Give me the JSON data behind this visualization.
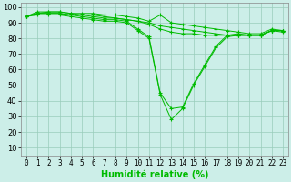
{
  "xlabel": "Humidité relative (%)",
  "ylabel_ticks": [
    10,
    20,
    30,
    40,
    50,
    60,
    70,
    80,
    90,
    100
  ],
  "xlim": [
    -0.5,
    23.5
  ],
  "ylim": [
    5,
    103
  ],
  "bg_color": "#cceee8",
  "grid_color": "#99ccbb",
  "line_color": "#00bb00",
  "marker": "+",
  "figsize": [
    3.2,
    2.0
  ],
  "dpi": 100,
  "series": [
    [
      94,
      97,
      97,
      97,
      96,
      96,
      96,
      95,
      95,
      94,
      93,
      91,
      95,
      90,
      89,
      88,
      87,
      86,
      85,
      84,
      83,
      83,
      86,
      85
    ],
    [
      94,
      96,
      97,
      97,
      96,
      95,
      95,
      94,
      93,
      92,
      91,
      90,
      88,
      87,
      86,
      85,
      84,
      83,
      82,
      82,
      82,
      82,
      85,
      85
    ],
    [
      94,
      96,
      96,
      96,
      95,
      95,
      94,
      93,
      93,
      92,
      91,
      89,
      86,
      84,
      83,
      83,
      82,
      82,
      82,
      82,
      82,
      82,
      85,
      85
    ],
    [
      94,
      96,
      96,
      96,
      95,
      94,
      93,
      92,
      92,
      91,
      86,
      81,
      45,
      35,
      36,
      51,
      63,
      75,
      82,
      83,
      82,
      82,
      85,
      85
    ],
    [
      94,
      95,
      95,
      95,
      94,
      93,
      92,
      91,
      91,
      90,
      85,
      80,
      44,
      28,
      35,
      50,
      62,
      74,
      81,
      82,
      82,
      82,
      85,
      84
    ]
  ]
}
